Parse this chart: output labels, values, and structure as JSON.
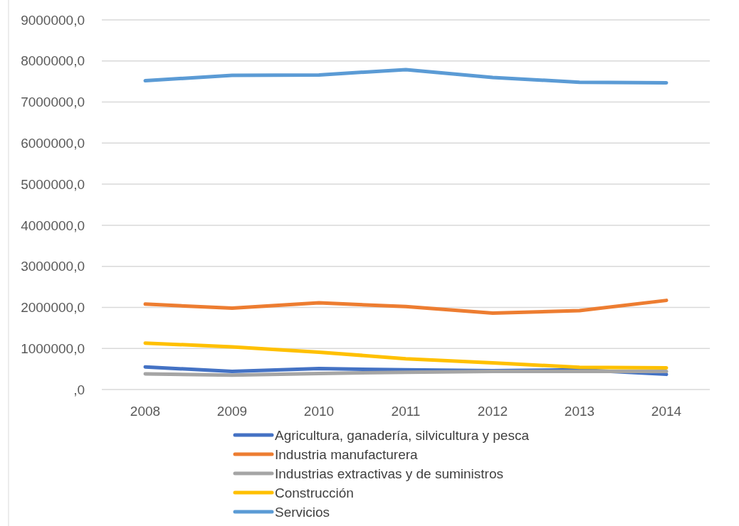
{
  "chart_data": {
    "type": "line",
    "categories": [
      "2008",
      "2009",
      "2010",
      "2011",
      "2012",
      "2013",
      "2014"
    ],
    "series": [
      {
        "name": "Agricultura, ganadería, silvicultura y pesca",
        "color": "#4472c4",
        "values": [
          550000,
          440000,
          510000,
          480000,
          460000,
          480000,
          370000
        ]
      },
      {
        "name": "Industria manufacturera",
        "color": "#ed7d31",
        "values": [
          2080000,
          1980000,
          2110000,
          2020000,
          1860000,
          1920000,
          2170000
        ]
      },
      {
        "name": "Industrias extractivas y de suministros",
        "color": "#a5a5a5",
        "values": [
          380000,
          350000,
          390000,
          420000,
          440000,
          440000,
          440000
        ]
      },
      {
        "name": "Construcción",
        "color": "#ffc000",
        "values": [
          1130000,
          1040000,
          910000,
          750000,
          650000,
          540000,
          530000
        ]
      },
      {
        "name": "Servicios",
        "color": "#5b9bd5",
        "values": [
          7520000,
          7650000,
          7660000,
          7790000,
          7600000,
          7480000,
          7470000
        ]
      }
    ],
    "ylim": [
      0,
      9000000
    ],
    "yticks": [
      {
        "value": 0,
        "label": ",0"
      },
      {
        "value": 1000000,
        "label": "1000000,0"
      },
      {
        "value": 2000000,
        "label": "2000000,0"
      },
      {
        "value": 3000000,
        "label": "3000000,0"
      },
      {
        "value": 4000000,
        "label": "4000000,0"
      },
      {
        "value": 5000000,
        "label": "5000000,0"
      },
      {
        "value": 6000000,
        "label": "6000000,0"
      },
      {
        "value": 7000000,
        "label": "7000000,0"
      },
      {
        "value": 8000000,
        "label": "8000000,0"
      },
      {
        "value": 9000000,
        "label": "9000000,0"
      }
    ],
    "grid": "y",
    "legend": "bottom",
    "marker": "none",
    "line_style": "solid"
  }
}
